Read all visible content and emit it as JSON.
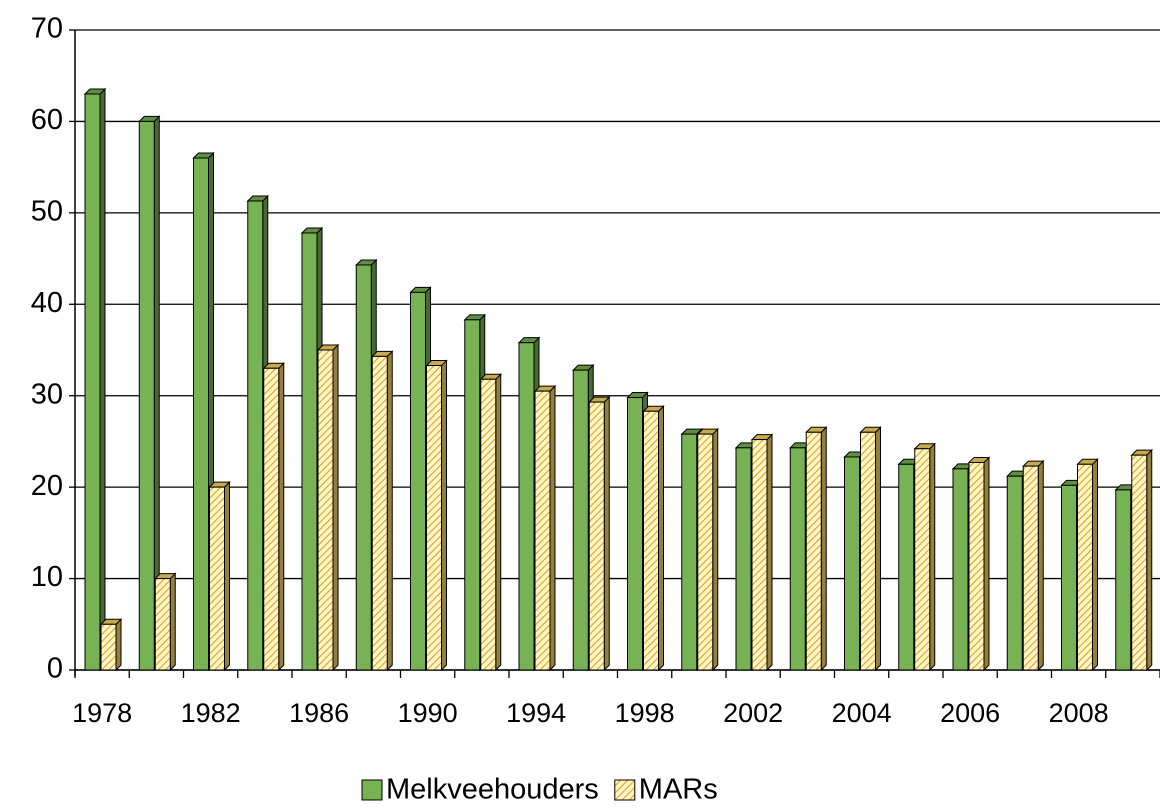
{
  "chart_data": {
    "type": "bar",
    "categories": [
      "1978",
      null,
      "1982",
      null,
      "1986",
      null,
      "1990",
      null,
      "1994",
      null,
      "1998",
      null,
      "2002",
      null,
      "2004",
      null,
      "2006",
      null,
      "2008",
      null
    ],
    "series": [
      {
        "name": "Melkveehouders",
        "color": "#77b255",
        "hatch": false,
        "values": [
          63,
          60,
          56,
          51.3,
          47.8,
          44.3,
          41.3,
          38.3,
          35.8,
          32.8,
          29.8,
          25.8,
          24.3,
          24.3,
          23.3,
          22.5,
          22,
          21.2,
          20.2,
          19.7
        ]
      },
      {
        "name": "MARs",
        "color": "#f7d560",
        "hatch": true,
        "values": [
          5,
          10,
          20,
          33,
          35,
          34.3,
          33.3,
          31.8,
          30.5,
          29.3,
          28.3,
          25.8,
          25.2,
          26,
          26,
          24.2,
          22.7,
          22.3,
          22.5,
          23.5
        ]
      }
    ],
    "ylim": [
      0,
      70
    ],
    "yticks": [
      0,
      10,
      20,
      30,
      40,
      50,
      60,
      70
    ],
    "grid": true,
    "legend": "bottom"
  }
}
